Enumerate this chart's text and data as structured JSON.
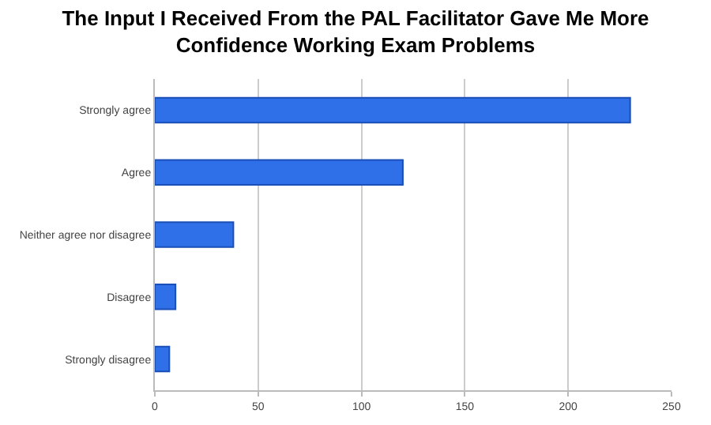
{
  "chart_data": {
    "type": "bar",
    "orientation": "horizontal",
    "title": "The Input I Received From the PAL Facilitator Gave Me More Confidence Working Exam Problems",
    "categories": [
      "Strongly agree",
      "Agree",
      "Neither agree nor disagree",
      "Disagree",
      "Strongly disagree"
    ],
    "values": [
      230,
      120,
      38,
      10,
      7
    ],
    "color": "#2f6fe8",
    "xlim": [
      0,
      250
    ],
    "xticks": [
      0,
      50,
      100,
      150,
      200,
      250
    ],
    "grid": "x"
  }
}
